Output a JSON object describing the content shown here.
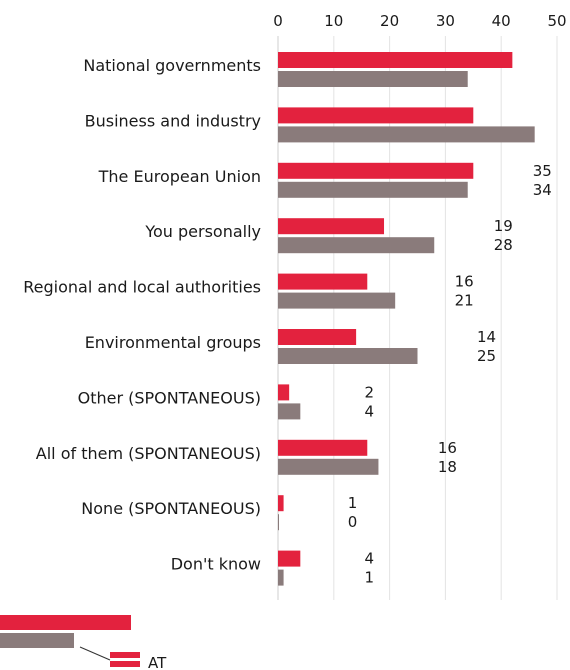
{
  "colors": {
    "primary": "#e3223e",
    "secondary": "#8a7b7b",
    "grid": "#e3e3e3",
    "legend_line": "#333333"
  },
  "chart_data": {
    "type": "bar",
    "orientation": "horizontal",
    "categories": [
      "National governments",
      "Business and industry",
      "The European Union",
      "You personally",
      "Regional and local authorities",
      "Environmental groups",
      "Other (SPONTANEOUS)",
      "All of them (SPONTANEOUS)",
      "None (SPONTANEOUS)",
      "Don't know"
    ],
    "series": [
      {
        "name": "AT",
        "color": "#e3223e",
        "values": [
          42,
          35,
          35,
          19,
          16,
          14,
          2,
          16,
          1,
          4
        ]
      },
      {
        "color": "#8a7b7b",
        "values": [
          34,
          46,
          34,
          28,
          21,
          25,
          4,
          18,
          0,
          1
        ]
      }
    ],
    "data_labels": [
      [
        "",
        ""
      ],
      [
        "",
        ""
      ],
      [
        "35",
        "34"
      ],
      [
        "19",
        "28"
      ],
      [
        "16",
        "21"
      ],
      [
        "14",
        "25"
      ],
      [
        "2",
        "4"
      ],
      [
        "16",
        "18"
      ],
      [
        "1",
        "0"
      ],
      [
        "4",
        "1"
      ]
    ],
    "xlim": [
      0,
      50
    ],
    "xticks": [
      0,
      10,
      20,
      30,
      40,
      50
    ],
    "grid": true,
    "legend_position": "bottom-left"
  }
}
